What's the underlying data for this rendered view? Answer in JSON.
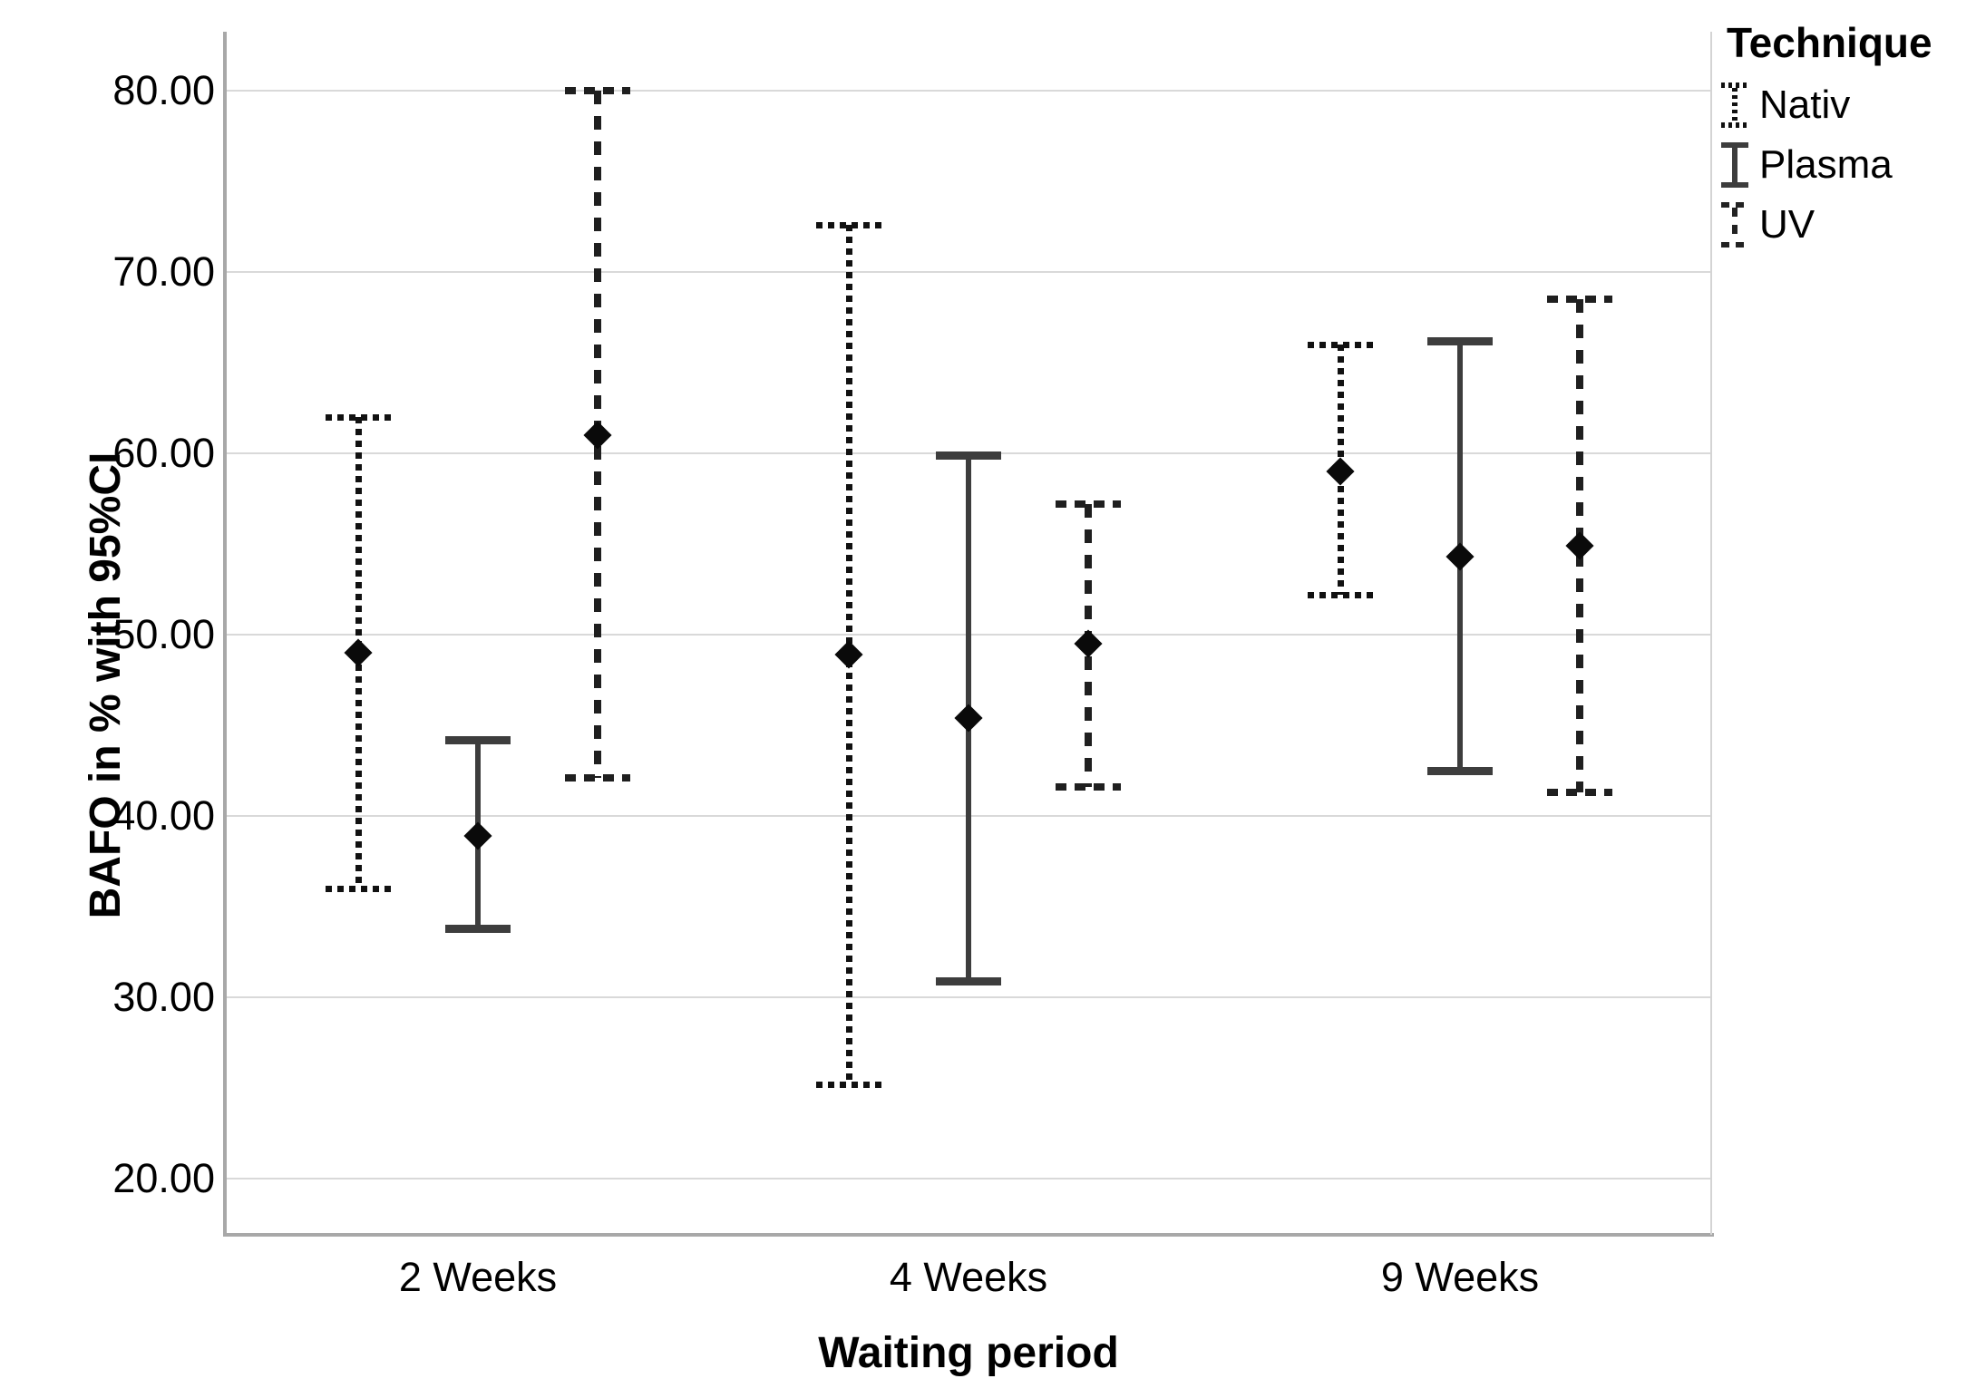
{
  "chart_data": {
    "type": "errorbar",
    "title": "",
    "xlabel": "Waiting period",
    "ylabel": "BAFO in % with 95%CI",
    "categories": [
      "2 Weeks",
      "4 Weeks",
      "9 Weeks"
    ],
    "y_ticks": [
      {
        "value": 80,
        "label": "80.00"
      },
      {
        "value": 70,
        "label": "70.00"
      },
      {
        "value": 60,
        "label": "60.00"
      },
      {
        "value": 50,
        "label": "50.00"
      },
      {
        "value": 40,
        "label": "40.00"
      },
      {
        "value": 30,
        "label": "30.00"
      },
      {
        "value": 20,
        "label": "20.00"
      }
    ],
    "ylim": [
      17,
      83.2
    ],
    "grid": "horizontal",
    "marker": "filled-diamond",
    "legend": {
      "title": "Technique",
      "position": "top-right-outside",
      "entries": [
        {
          "label": "Nativ",
          "style": "dotted"
        },
        {
          "label": "Plasma",
          "style": "solid"
        },
        {
          "label": "UV",
          "style": "dashed"
        }
      ]
    },
    "series": [
      {
        "name": "Nativ",
        "line_style": "dotted",
        "color": "#111111",
        "points": [
          {
            "category": "2 Weeks",
            "mean": 49.0,
            "ci_low": 36.0,
            "ci_high": 62.0
          },
          {
            "category": "4 Weeks",
            "mean": 48.9,
            "ci_low": 25.2,
            "ci_high": 72.6
          },
          {
            "category": "9 Weeks",
            "mean": 59.0,
            "ci_low": 52.2,
            "ci_high": 66.0
          }
        ]
      },
      {
        "name": "Plasma",
        "line_style": "solid",
        "color": "#3d3d3d",
        "points": [
          {
            "category": "2 Weeks",
            "mean": 38.9,
            "ci_low": 33.8,
            "ci_high": 44.2
          },
          {
            "category": "4 Weeks",
            "mean": 45.4,
            "ci_low": 30.9,
            "ci_high": 59.9
          },
          {
            "category": "9 Weeks",
            "mean": 54.3,
            "ci_low": 42.5,
            "ci_high": 66.2
          }
        ]
      },
      {
        "name": "UV",
        "line_style": "dashed",
        "color": "#1f1f1f",
        "points": [
          {
            "category": "2 Weeks",
            "mean": 61.0,
            "ci_low": 42.1,
            "ci_high": 80.0
          },
          {
            "category": "4 Weeks",
            "mean": 49.5,
            "ci_low": 41.6,
            "ci_high": 57.2
          },
          {
            "category": "9 Weeks",
            "mean": 54.9,
            "ci_low": 41.3,
            "ci_high": 68.5
          }
        ]
      }
    ]
  }
}
